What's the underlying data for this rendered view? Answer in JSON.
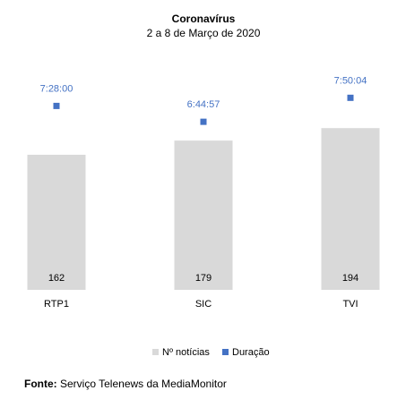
{
  "chart_data": {
    "type": "bar",
    "title": "Coronavírus",
    "subtitle": "2 a 8 de Março de 2020",
    "categories": [
      "RTP1",
      "SIC",
      "TVI"
    ],
    "series": [
      {
        "name": "Nº notícias",
        "kind": "bar",
        "values": [
          162,
          179,
          194
        ]
      },
      {
        "name": "Duração",
        "kind": "marker",
        "values": [
          "7:28:00",
          "6:44:57",
          "7:50:04"
        ]
      }
    ],
    "colors": {
      "bar": "#D9D9D9",
      "marker": "#4472C4"
    },
    "legend_position": "bottom",
    "grid": false
  },
  "footer": {
    "label": "Fonte:",
    "text": "Serviço Telenews da MediaMonitor"
  }
}
